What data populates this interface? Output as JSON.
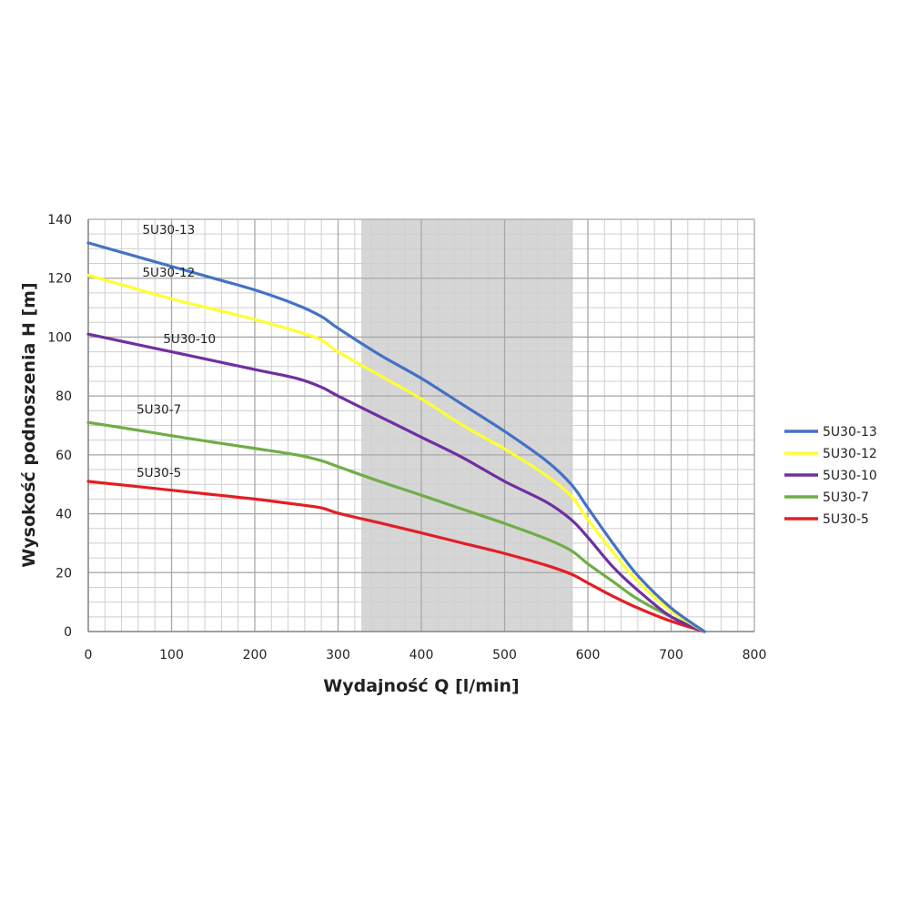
{
  "chart_data": {
    "type": "line",
    "xlabel": "Wydajność Q [l/min]",
    "ylabel": "Wysokość podnoszenia H [m]",
    "xlim": [
      0,
      800
    ],
    "ylim": [
      0,
      140
    ],
    "x_ticks": [
      0,
      100,
      200,
      300,
      400,
      500,
      600,
      700,
      800
    ],
    "y_ticks": [
      0,
      20,
      40,
      60,
      80,
      100,
      120,
      140
    ],
    "grid": true,
    "legend_position": "right",
    "shaded_region": {
      "x_start": 328,
      "x_end": 582,
      "color": "#d6d6d6"
    },
    "series": [
      {
        "name": "5U30-13",
        "color": "#4472c4",
        "label_at": [
          65,
          135
        ],
        "x": [
          0,
          50,
          100,
          150,
          200,
          250,
          280,
          300,
          350,
          400,
          450,
          500,
          550,
          580,
          600,
          630,
          660,
          700,
          740
        ],
        "y": [
          132,
          128,
          124,
          120,
          116,
          111,
          107,
          103,
          94,
          86,
          77,
          68,
          58,
          50,
          42,
          30,
          19,
          8,
          0
        ]
      },
      {
        "name": "5U30-12",
        "color": "#ffff33",
        "label_at": [
          65,
          120.5
        ],
        "x": [
          0,
          50,
          100,
          150,
          200,
          250,
          280,
          300,
          350,
          400,
          450,
          500,
          550,
          580,
          600,
          630,
          660,
          700,
          740
        ],
        "y": [
          121,
          117,
          113,
          109.5,
          106,
          102,
          99,
          95,
          87,
          79,
          70,
          62,
          53,
          46,
          38,
          27,
          17,
          7,
          0
        ]
      },
      {
        "name": "5U30-10",
        "color": "#7030a0",
        "label_at": [
          90,
          98
        ],
        "x": [
          0,
          50,
          100,
          150,
          200,
          250,
          280,
          300,
          350,
          400,
          450,
          500,
          550,
          580,
          600,
          630,
          660,
          700,
          740
        ],
        "y": [
          101,
          98,
          95,
          92,
          89,
          86,
          83,
          80,
          73,
          66,
          59,
          51,
          44,
          38,
          32,
          22,
          14,
          5,
          0
        ]
      },
      {
        "name": "5U30-7",
        "color": "#70ad47",
        "label_at": [
          58,
          74
        ],
        "x": [
          0,
          50,
          100,
          150,
          200,
          250,
          280,
          300,
          350,
          400,
          450,
          500,
          550,
          580,
          600,
          630,
          660,
          700,
          740
        ],
        "y": [
          71,
          68.8,
          66.5,
          64.3,
          62.2,
          60,
          58,
          56,
          51,
          46.3,
          41.5,
          36.7,
          31.5,
          27.5,
          23,
          17,
          11,
          5,
          0
        ]
      },
      {
        "name": "5U30-5",
        "color": "#e31e24",
        "label_at": [
          58,
          52.5
        ],
        "x": [
          0,
          50,
          100,
          150,
          200,
          250,
          280,
          300,
          350,
          400,
          450,
          500,
          550,
          580,
          600,
          630,
          660,
          700,
          740
        ],
        "y": [
          51,
          49.5,
          48,
          46.5,
          45,
          43.2,
          42,
          40.2,
          36.9,
          33.5,
          30,
          26.5,
          22.5,
          19.5,
          16.5,
          12,
          8,
          3.5,
          0
        ]
      }
    ]
  }
}
